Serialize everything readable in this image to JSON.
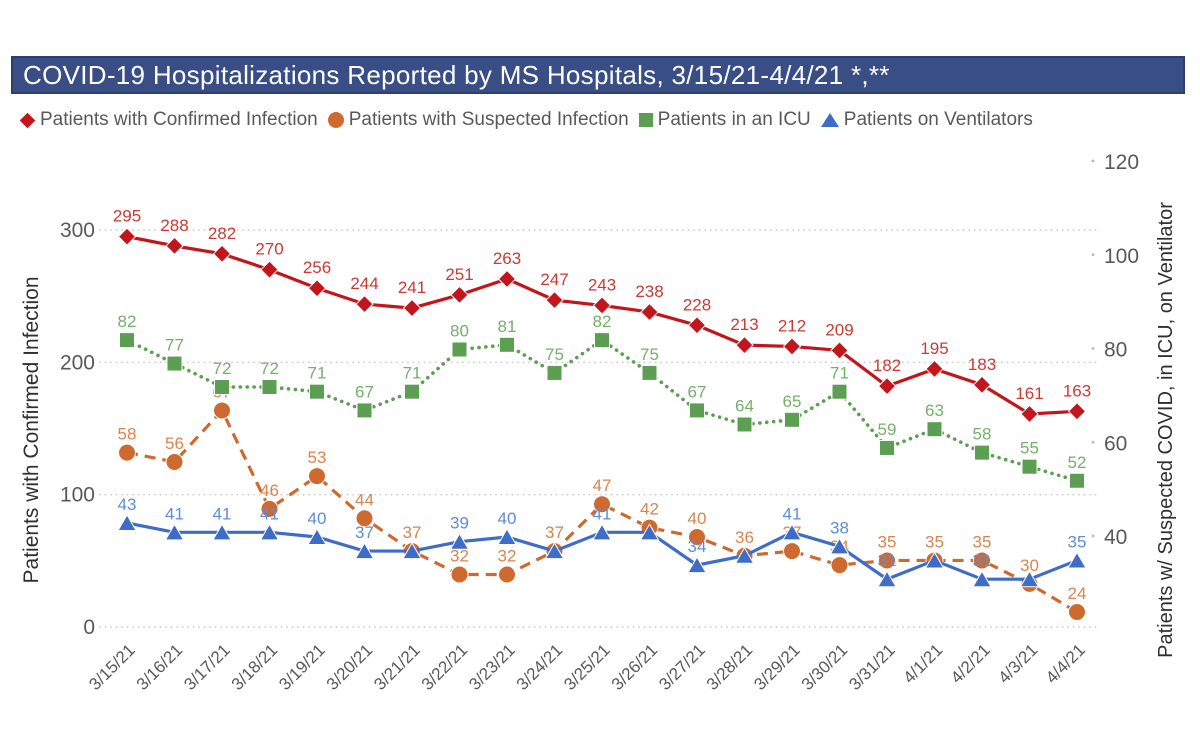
{
  "chart_data": {
    "type": "line",
    "title": "COVID-19 Hospitalizations Reported by MS Hospitals, 3/15/21-4/4/21 *,**",
    "x": [
      "3/15/21",
      "3/16/21",
      "3/17/21",
      "3/18/21",
      "3/19/21",
      "3/20/21",
      "3/21/21",
      "3/22/21",
      "3/23/21",
      "3/24/21",
      "3/25/21",
      "3/26/21",
      "3/27/21",
      "3/28/21",
      "3/29/21",
      "3/30/21",
      "3/31/21",
      "4/1/21",
      "4/2/21",
      "4/3/21",
      "4/4/21"
    ],
    "grid": "dotted-horizontal",
    "legend_position": "top",
    "axes": {
      "left": {
        "title": "Patients with Confirmed Infection",
        "ticks": [
          0,
          100,
          200,
          300
        ],
        "range": [
          0,
          300
        ]
      },
      "right": {
        "title": "Patients w/ Suspected COVID, in ICU, on Ventilator",
        "ticks": [
          40,
          60,
          80,
          100,
          120
        ],
        "range": [
          20,
          120
        ]
      }
    },
    "series": [
      {
        "key": "confirmed",
        "name": "Patients with Confirmed Infection",
        "axis": "left",
        "marker": "diamond",
        "line": "solid",
        "color": "#C3161C",
        "label_color": "#CB3A34",
        "values": [
          295,
          288,
          282,
          270,
          256,
          244,
          241,
          251,
          263,
          247,
          243,
          238,
          228,
          213,
          212,
          209,
          182,
          195,
          183,
          161,
          163
        ],
        "labels": [
          295,
          288,
          282,
          270,
          256,
          244,
          241,
          251,
          263,
          247,
          243,
          238,
          228,
          213,
          212,
          209,
          182,
          195,
          183,
          161,
          163
        ]
      },
      {
        "key": "suspected",
        "name": "Patients with Suspected Infection",
        "axis": "right",
        "marker": "circle",
        "line": "dashed",
        "color": "#CE6A2F",
        "label_color": "#D8854E",
        "values": [
          58,
          56,
          67,
          46,
          53,
          44,
          37,
          32,
          32,
          37,
          47,
          42,
          40,
          36,
          37,
          34,
          35,
          35,
          35,
          30,
          24
        ],
        "labels": [
          58,
          56,
          67,
          46,
          53,
          44,
          37,
          32,
          32,
          37,
          47,
          42,
          40,
          36,
          37,
          34,
          35,
          35,
          35,
          30,
          24
        ]
      },
      {
        "key": "icu",
        "name": "Patients in an ICU",
        "axis": "right",
        "marker": "square",
        "line": "dotted",
        "color": "#5C9E52",
        "label_color": "#74B169",
        "values": [
          82,
          77,
          72,
          72,
          71,
          67,
          71,
          80,
          81,
          75,
          82,
          75,
          67,
          64,
          65,
          71,
          59,
          63,
          58,
          55,
          52
        ],
        "labels": [
          82,
          77,
          72,
          72,
          71,
          67,
          71,
          80,
          81,
          75,
          82,
          75,
          67,
          64,
          65,
          71,
          59,
          63,
          58,
          55,
          52
        ]
      },
      {
        "key": "ventilators",
        "name": "Patients on Ventilators",
        "axis": "right",
        "marker": "triangle",
        "line": "solid",
        "color": "#3E6CC7",
        "label_color": "#5E8DD6",
        "values": [
          43,
          41,
          41,
          41,
          40,
          37,
          37,
          39,
          40,
          37,
          41,
          41,
          34,
          36,
          41,
          38,
          31,
          35,
          31,
          31,
          35
        ],
        "labels": [
          43,
          41,
          41,
          41,
          40,
          37,
          null,
          39,
          40,
          null,
          41,
          null,
          34,
          null,
          41,
          38,
          31,
          null,
          31,
          null,
          35
        ]
      }
    ]
  }
}
